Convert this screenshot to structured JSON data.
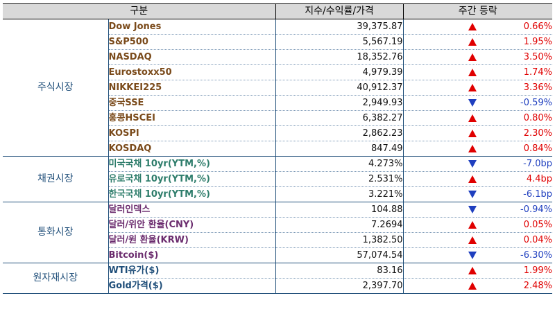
{
  "header": {
    "col_category": "구분",
    "col_value": "지수/수익률/가격",
    "col_change": "주간 등락"
  },
  "groups": [
    {
      "category": "주식시장",
      "class": "g-stock",
      "rows": [
        {
          "name": "Dow Jones",
          "value": "39,375.87",
          "dir": "up",
          "change": "0.66%"
        },
        {
          "name": "S&P500",
          "value": "5,567.19",
          "dir": "up",
          "change": "1.95%"
        },
        {
          "name": "NASDAQ",
          "value": "18,352.76",
          "dir": "up",
          "change": "3.50%"
        },
        {
          "name": "Eurostoxx50",
          "value": "4,979.39",
          "dir": "up",
          "change": "1.74%"
        },
        {
          "name": "NIKKEI225",
          "value": "40,912.37",
          "dir": "up",
          "change": "3.36%"
        },
        {
          "name": "중국SSE",
          "value": "2,949.93",
          "dir": "down",
          "change": "-0.59%"
        },
        {
          "name": "홍콩HSCEI",
          "value": "6,382.27",
          "dir": "up",
          "change": "0.80%"
        },
        {
          "name": "KOSPI",
          "value": "2,862.23",
          "dir": "up",
          "change": "2.30%"
        },
        {
          "name": "KOSDAQ",
          "value": "847.49",
          "dir": "up",
          "change": "0.84%"
        }
      ]
    },
    {
      "category": "채권시장",
      "class": "g-bond",
      "rows": [
        {
          "name": "미국국채 10yr(YTM,%)",
          "value": "4.273%",
          "dir": "down",
          "change": "-7.0bp"
        },
        {
          "name": "유로국채 10yr(YTM,%)",
          "value": "2.531%",
          "dir": "up",
          "change": "4.4bp"
        },
        {
          "name": "한국국채 10yr(YTM,%)",
          "value": "3.221%",
          "dir": "down",
          "change": "-6.1bp"
        }
      ]
    },
    {
      "category": "통화시장",
      "class": "g-fx",
      "rows": [
        {
          "name": "달러인덱스",
          "value": "104.88",
          "dir": "down",
          "change": "-0.94%"
        },
        {
          "name": "달러/위안 환율(CNY)",
          "value": "7.2694",
          "dir": "up",
          "change": "0.05%"
        },
        {
          "name": "달러/원 환율(KRW)",
          "value": "1,382.50",
          "dir": "up",
          "change": "0.04%"
        },
        {
          "name": "Bitcoin($)",
          "value": "57,074.54",
          "dir": "down",
          "change": "-6.30%"
        }
      ]
    },
    {
      "category": "원자재시장",
      "class": "g-cmd",
      "rows": [
        {
          "name": "WTI유가($)",
          "value": "83.16",
          "dir": "up",
          "change": "1.99%"
        },
        {
          "name": "Gold가격($)",
          "value": "2,397.70",
          "dir": "up",
          "change": "2.48%"
        }
      ]
    }
  ]
}
